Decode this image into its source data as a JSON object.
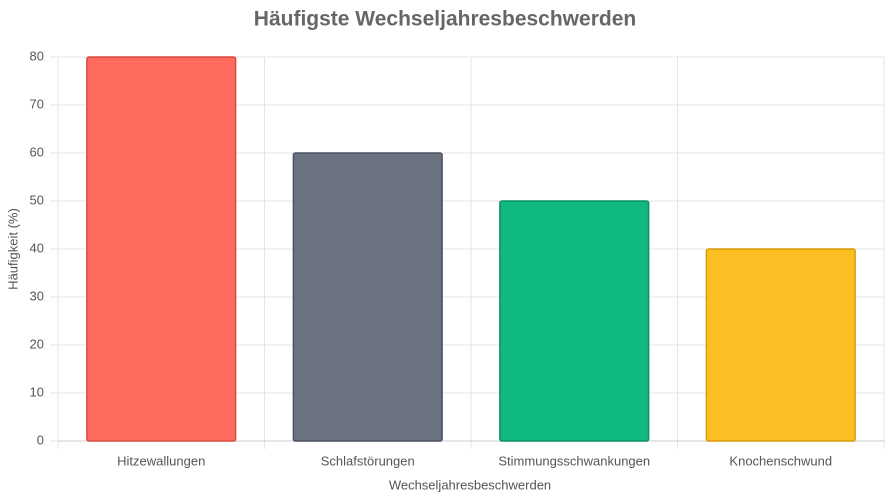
{
  "chart_data": {
    "type": "bar",
    "title": "Häufigste Wechseljahresbeschwerden",
    "x_label": "Wechseljahresbeschwerden",
    "y_label": "Häufigkeit (%)",
    "categories": [
      "Hitzewallungen",
      "Schlafstörungen",
      "Stimmungsschwankungen",
      "Knochenschwund"
    ],
    "values": [
      80,
      60,
      50,
      40
    ],
    "colors": [
      "#ff6b5e",
      "#6b7280",
      "#10b981",
      "#fbbf24"
    ],
    "border_colors": [
      "#d94a40",
      "#4b5260",
      "#0b8f63",
      "#d99a0b"
    ],
    "ylim": [
      0,
      80
    ],
    "yticks": [
      0,
      10,
      20,
      30,
      40,
      50,
      60,
      70,
      80
    ],
    "grid": true
  }
}
